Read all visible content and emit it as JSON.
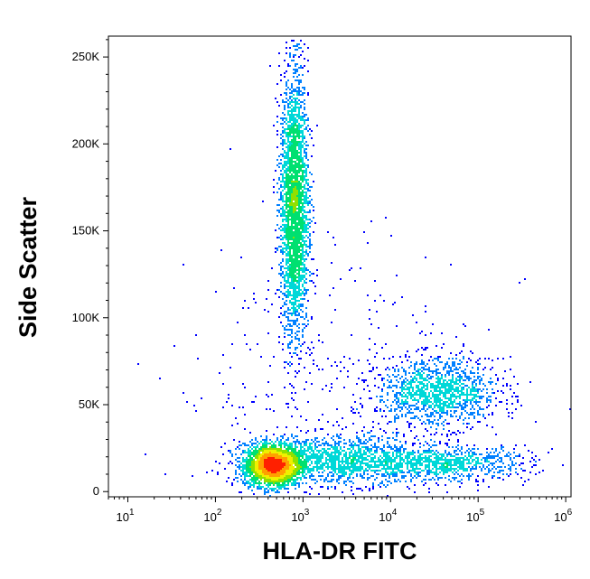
{
  "chart_data": {
    "type": "scatter",
    "style": "flow-cytometry density dot plot (pseudocolor)",
    "xlabel": "HLA-DR FITC",
    "ylabel": "Side Scatter",
    "x_scale": "log",
    "y_scale": "linear",
    "xlim": [
      6,
      1150000
    ],
    "ylim": [
      -3000,
      262000
    ],
    "x_ticks": [
      {
        "value": 10,
        "base": "10",
        "exp": "1"
      },
      {
        "value": 100,
        "base": "10",
        "exp": "2"
      },
      {
        "value": 1000,
        "base": "10",
        "exp": "3"
      },
      {
        "value": 10000,
        "base": "10",
        "exp": "4"
      },
      {
        "value": 100000,
        "base": "10",
        "exp": "5"
      },
      {
        "value": 1000000,
        "base": "10",
        "exp": "6"
      }
    ],
    "y_ticks": [
      {
        "value": 0,
        "label": "0"
      },
      {
        "value": 50000,
        "label": "50K"
      },
      {
        "value": 100000,
        "label": "100K"
      },
      {
        "value": 150000,
        "label": "150K"
      },
      {
        "value": 200000,
        "label": "200K"
      },
      {
        "value": 250000,
        "label": "250K"
      }
    ],
    "density_colors": [
      "#0000ff",
      "#0080ff",
      "#00d8d8",
      "#00e070",
      "#90e000",
      "#f0f000",
      "#ffa000",
      "#ff2000"
    ],
    "populations": [
      {
        "x_center": 450,
        "x_spread_decades": 0.16,
        "y_center": 15000,
        "y_spread": 6000,
        "points": 2600
      },
      {
        "x_center": 2500,
        "x_spread_decades": 0.5,
        "y_center": 18000,
        "y_spread": 7000,
        "points": 1400
      },
      {
        "x_center": 40000,
        "x_spread_decades": 0.5,
        "y_center": 16000,
        "y_spread": 5000,
        "points": 900
      },
      {
        "x_center": 800,
        "x_spread_decades": 0.08,
        "y_center": 165000,
        "y_spread": 38000,
        "points": 2800
      },
      {
        "x_center": 35000,
        "x_spread_decades": 0.35,
        "y_center": 57000,
        "y_spread": 10000,
        "points": 1300
      },
      {
        "x_center": 2000,
        "x_spread_decades": 0.9,
        "y_center": 60000,
        "y_spread": 45000,
        "points": 350
      }
    ],
    "grid": false,
    "legend": "none"
  }
}
